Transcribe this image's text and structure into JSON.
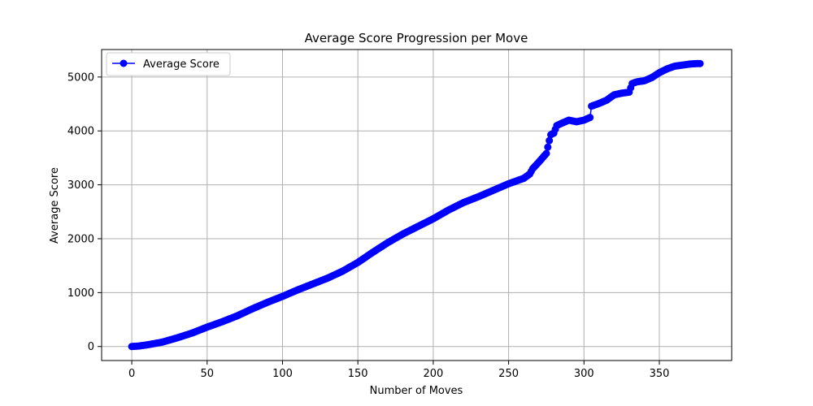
{
  "chart_data": {
    "type": "line",
    "title": "Average Score Progression per Move",
    "xlabel": "Number of Moves",
    "ylabel": "Average Score",
    "xlim": [
      -20,
      398
    ],
    "ylim": [
      -260,
      5510
    ],
    "xticks": [
      0,
      50,
      100,
      150,
      200,
      250,
      300,
      350
    ],
    "yticks": [
      0,
      1000,
      2000,
      3000,
      4000,
      5000
    ],
    "grid": true,
    "legend_position": "top-left",
    "series": [
      {
        "name": "Average Score",
        "color": "#0000ff",
        "marker": "circle",
        "x": [
          0,
          5,
          10,
          20,
          30,
          40,
          50,
          60,
          70,
          80,
          90,
          100,
          110,
          120,
          130,
          140,
          150,
          160,
          170,
          180,
          190,
          200,
          210,
          220,
          230,
          240,
          250,
          260,
          264,
          266,
          270,
          275,
          277,
          278,
          280,
          282,
          285,
          290,
          295,
          300,
          304,
          305,
          310,
          315,
          320,
          325,
          330,
          332,
          335,
          340,
          345,
          350,
          355,
          360,
          365,
          370,
          375,
          377
        ],
        "y": [
          0,
          10,
          30,
          80,
          160,
          250,
          360,
          460,
          570,
          700,
          820,
          930,
          1050,
          1160,
          1270,
          1400,
          1560,
          1750,
          1930,
          2090,
          2230,
          2370,
          2530,
          2670,
          2780,
          2900,
          3020,
          3120,
          3200,
          3300,
          3420,
          3580,
          3820,
          3930,
          3960,
          4100,
          4140,
          4200,
          4170,
          4200,
          4250,
          4460,
          4510,
          4570,
          4670,
          4700,
          4720,
          4880,
          4910,
          4930,
          4990,
          5080,
          5150,
          5200,
          5220,
          5240,
          5250,
          5250
        ]
      }
    ]
  }
}
